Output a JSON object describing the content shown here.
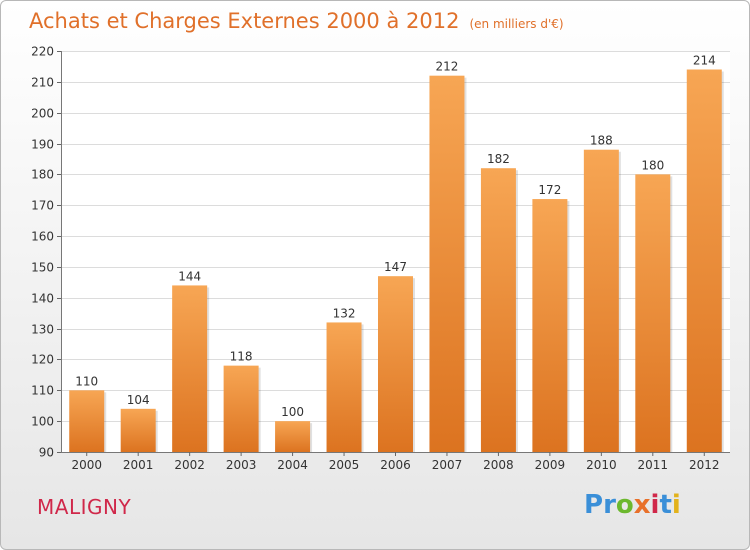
{
  "header": {
    "title": "Achats et Charges Externes 2000 à 2012",
    "subtitle": "(en milliers d'€)"
  },
  "footer": {
    "town": "MALIGNY",
    "brand": "Proxiti",
    "brand_letters": [
      {
        "ch": "P",
        "color": "#3a8fd8"
      },
      {
        "ch": "r",
        "color": "#3a8fd8"
      },
      {
        "ch": "o",
        "color": "#6cb82e"
      },
      {
        "ch": "x",
        "color": "#e8702a"
      },
      {
        "ch": "i",
        "color": "#d0284a"
      },
      {
        "ch": "t",
        "color": "#3a8fd8"
      },
      {
        "ch": "i",
        "color": "#e2b21c"
      }
    ]
  },
  "chart_data": {
    "type": "bar",
    "categories": [
      "2000",
      "2001",
      "2002",
      "2003",
      "2004",
      "2005",
      "2006",
      "2007",
      "2008",
      "2009",
      "2010",
      "2011",
      "2012"
    ],
    "values": [
      110,
      104,
      144,
      118,
      100,
      132,
      147,
      212,
      182,
      172,
      188,
      180,
      214
    ],
    "ylim": [
      90,
      220
    ],
    "yticks": [
      90,
      100,
      110,
      120,
      130,
      140,
      150,
      160,
      170,
      180,
      190,
      200,
      210,
      220
    ],
    "grid": true,
    "colors": {
      "bar_top": "#f7a654",
      "bar_bottom": "#dc7320",
      "grid": "#dcdcdc"
    }
  }
}
